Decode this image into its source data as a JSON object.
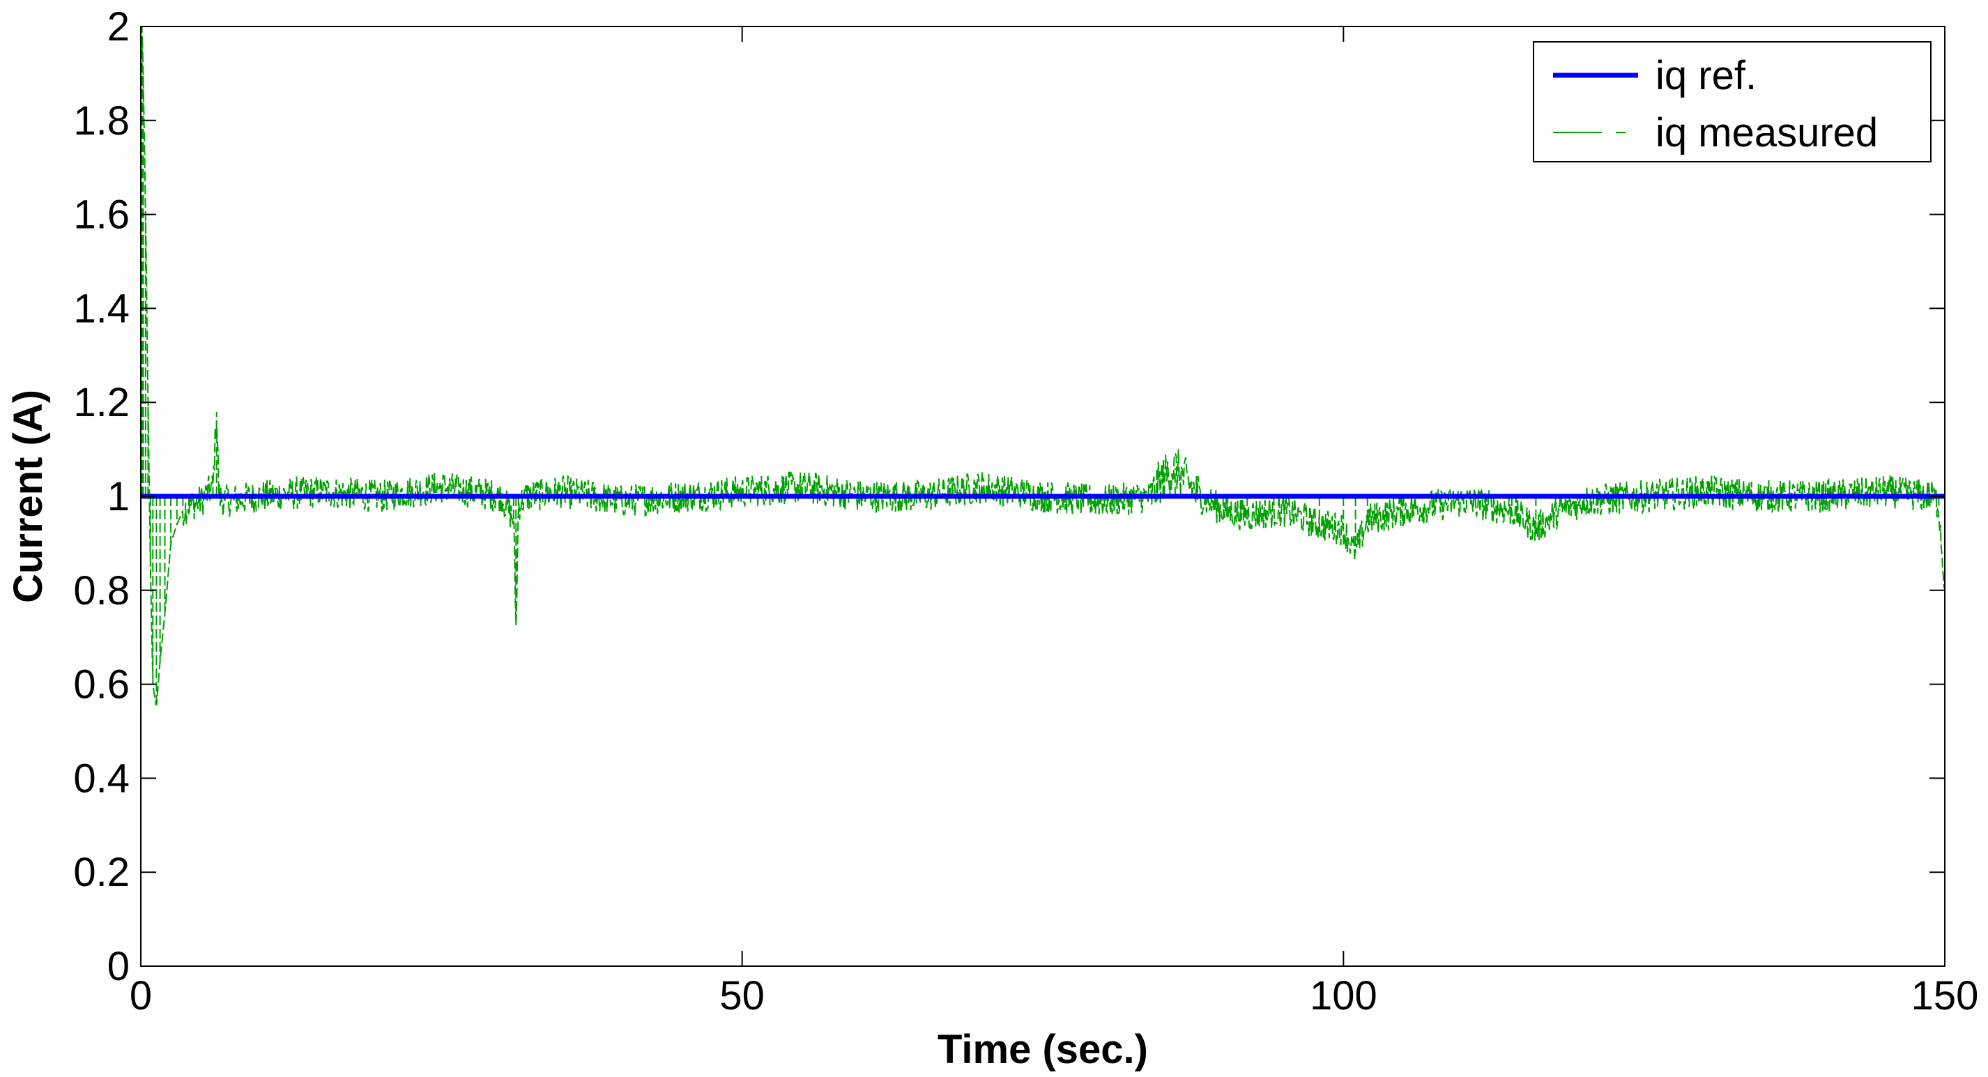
{
  "chart_data": {
    "type": "line",
    "title": "",
    "xlabel": "Time (sec.)",
    "ylabel": "Current (A)",
    "xlim": [
      0,
      150
    ],
    "ylim": [
      0,
      2
    ],
    "xticks": [
      0,
      50,
      100,
      150
    ],
    "yticks": [
      0,
      0.2,
      0.4,
      0.6,
      0.8,
      1,
      1.2,
      1.4,
      1.6,
      1.8,
      2
    ],
    "xtick_labels": [
      "0",
      "50",
      "100",
      "150"
    ],
    "ytick_labels": [
      "0",
      "0.2",
      "0.4",
      "0.6",
      "0.8",
      "1",
      "1.2",
      "1.4",
      "1.6",
      "1.8",
      "2"
    ],
    "grid": false,
    "legend_position": "top-right",
    "series": [
      {
        "name": "iq ref.",
        "color": "#0000ff",
        "style": "solid",
        "x": [
          0,
          150
        ],
        "y": [
          1,
          1
        ]
      },
      {
        "name": "iq measured",
        "color": "#00a000",
        "style": "dashed",
        "x": [
          0,
          0.1,
          0.2,
          0.4,
          0.6,
          0.8,
          1.0,
          1.3,
          1.6,
          2.0,
          2.5,
          3.0,
          3.5,
          4.0,
          5.0,
          6.0,
          6.3,
          6.5,
          7.0,
          10,
          15,
          20,
          25,
          30,
          31,
          31.2,
          31.4,
          32,
          35,
          40,
          45,
          50,
          55,
          60,
          65,
          70,
          75,
          80,
          84,
          85,
          86,
          88,
          90,
          92,
          95,
          98,
          100,
          101,
          102,
          105,
          110,
          114,
          116,
          118,
          120,
          125,
          130,
          135,
          140,
          145,
          149,
          149.5,
          150
        ],
        "y": [
          1.0,
          2.0,
          1.9,
          1.6,
          1.2,
          0.85,
          0.6,
          0.55,
          0.65,
          0.75,
          0.9,
          0.94,
          0.97,
          0.98,
          0.99,
          1.02,
          1.18,
          1.0,
          0.99,
          1.0,
          1.01,
          1.0,
          1.02,
          1.0,
          0.95,
          0.72,
          0.98,
          1.0,
          1.01,
          0.99,
          1.0,
          1.01,
          1.02,
          1.0,
          1.0,
          1.02,
          1.0,
          0.99,
          1.0,
          1.04,
          1.06,
          1.0,
          0.97,
          0.96,
          0.97,
          0.94,
          0.93,
          0.88,
          0.95,
          0.97,
          0.99,
          0.97,
          0.93,
          0.97,
          0.99,
          1.0,
          1.01,
          1.0,
          1.0,
          1.01,
          1.0,
          0.98,
          0.8
        ]
      }
    ]
  }
}
